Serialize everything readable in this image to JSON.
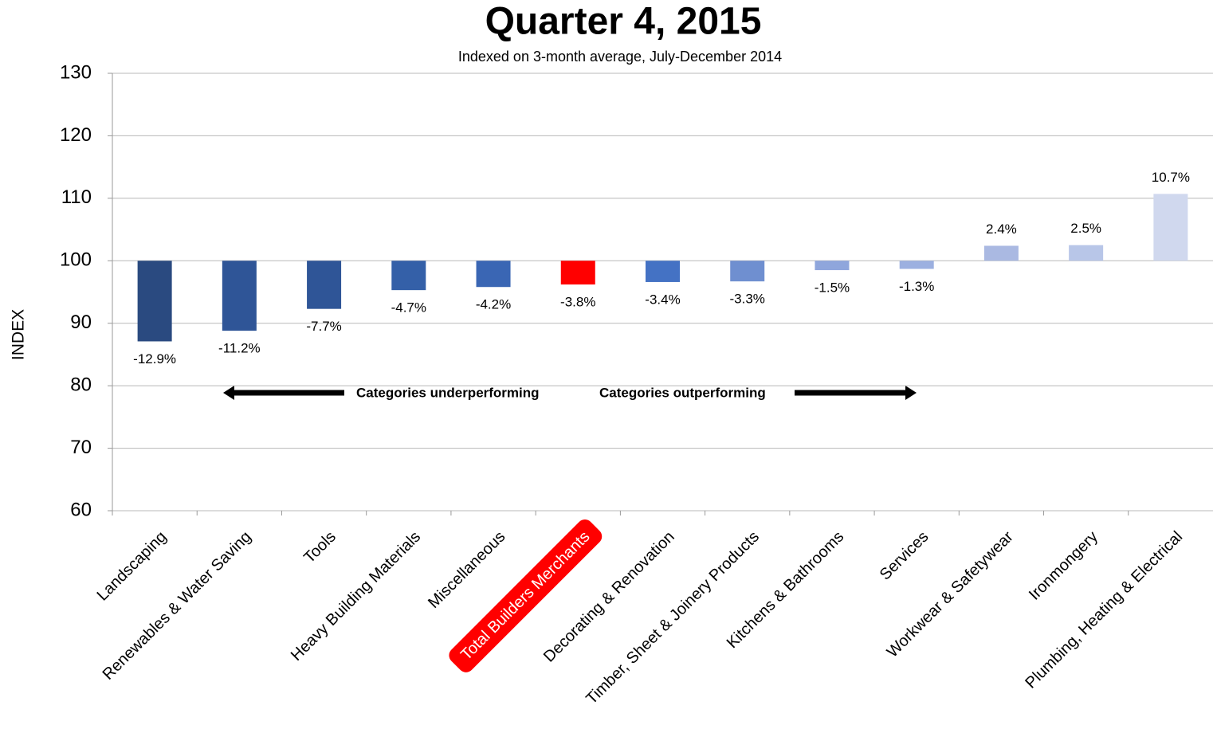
{
  "chart_data": {
    "type": "bar",
    "title": "Quarter 4, 2015",
    "subtitle": "Indexed on 3-month average, July-December 2014",
    "y_label": "INDEX",
    "baseline": 100,
    "categories": [
      "Landscaping",
      "Renewables & Water Saving",
      "Tools",
      "Heavy Building Materials",
      "Miscellaneous",
      "Total Builders Merchants",
      "Decorating & Renovation",
      "Timber, Sheet & Joinery Products",
      "Kitchens & Bathrooms",
      "Services",
      "Workwear & Safetywear",
      "Ironmongery",
      "Plumbing, Heating & Electrical"
    ],
    "values": [
      87.1,
      88.8,
      92.3,
      95.3,
      95.8,
      96.2,
      96.6,
      96.7,
      98.5,
      98.7,
      102.4,
      102.5,
      110.7
    ],
    "change_labels": [
      "-12.9%",
      "-11.2%",
      "-7.7%",
      "-4.7%",
      "-4.2%",
      "-3.8%",
      "-3.4%",
      "-3.3%",
      "-1.5%",
      "-1.3%",
      "2.4%",
      "2.5%",
      "10.7%"
    ],
    "colors": [
      "#2a4a80",
      "#2f5597",
      "#2f5597",
      "#3460a8",
      "#3a66b4",
      "#ff0000",
      "#4472c4",
      "#6f8fd0",
      "#8fa6dc",
      "#9cb0e0",
      "#aab9e2",
      "#b8c6e8",
      "#d0d8ee"
    ],
    "highlight_index": 5,
    "highlight_color": "#ff0000",
    "annotations": [
      "Categories underperforming",
      "Categories outperforming"
    ],
    "ylim": [
      60,
      130
    ],
    "yticks": [
      60,
      70,
      80,
      90,
      100,
      110,
      120,
      130
    ],
    "grid": true
  }
}
